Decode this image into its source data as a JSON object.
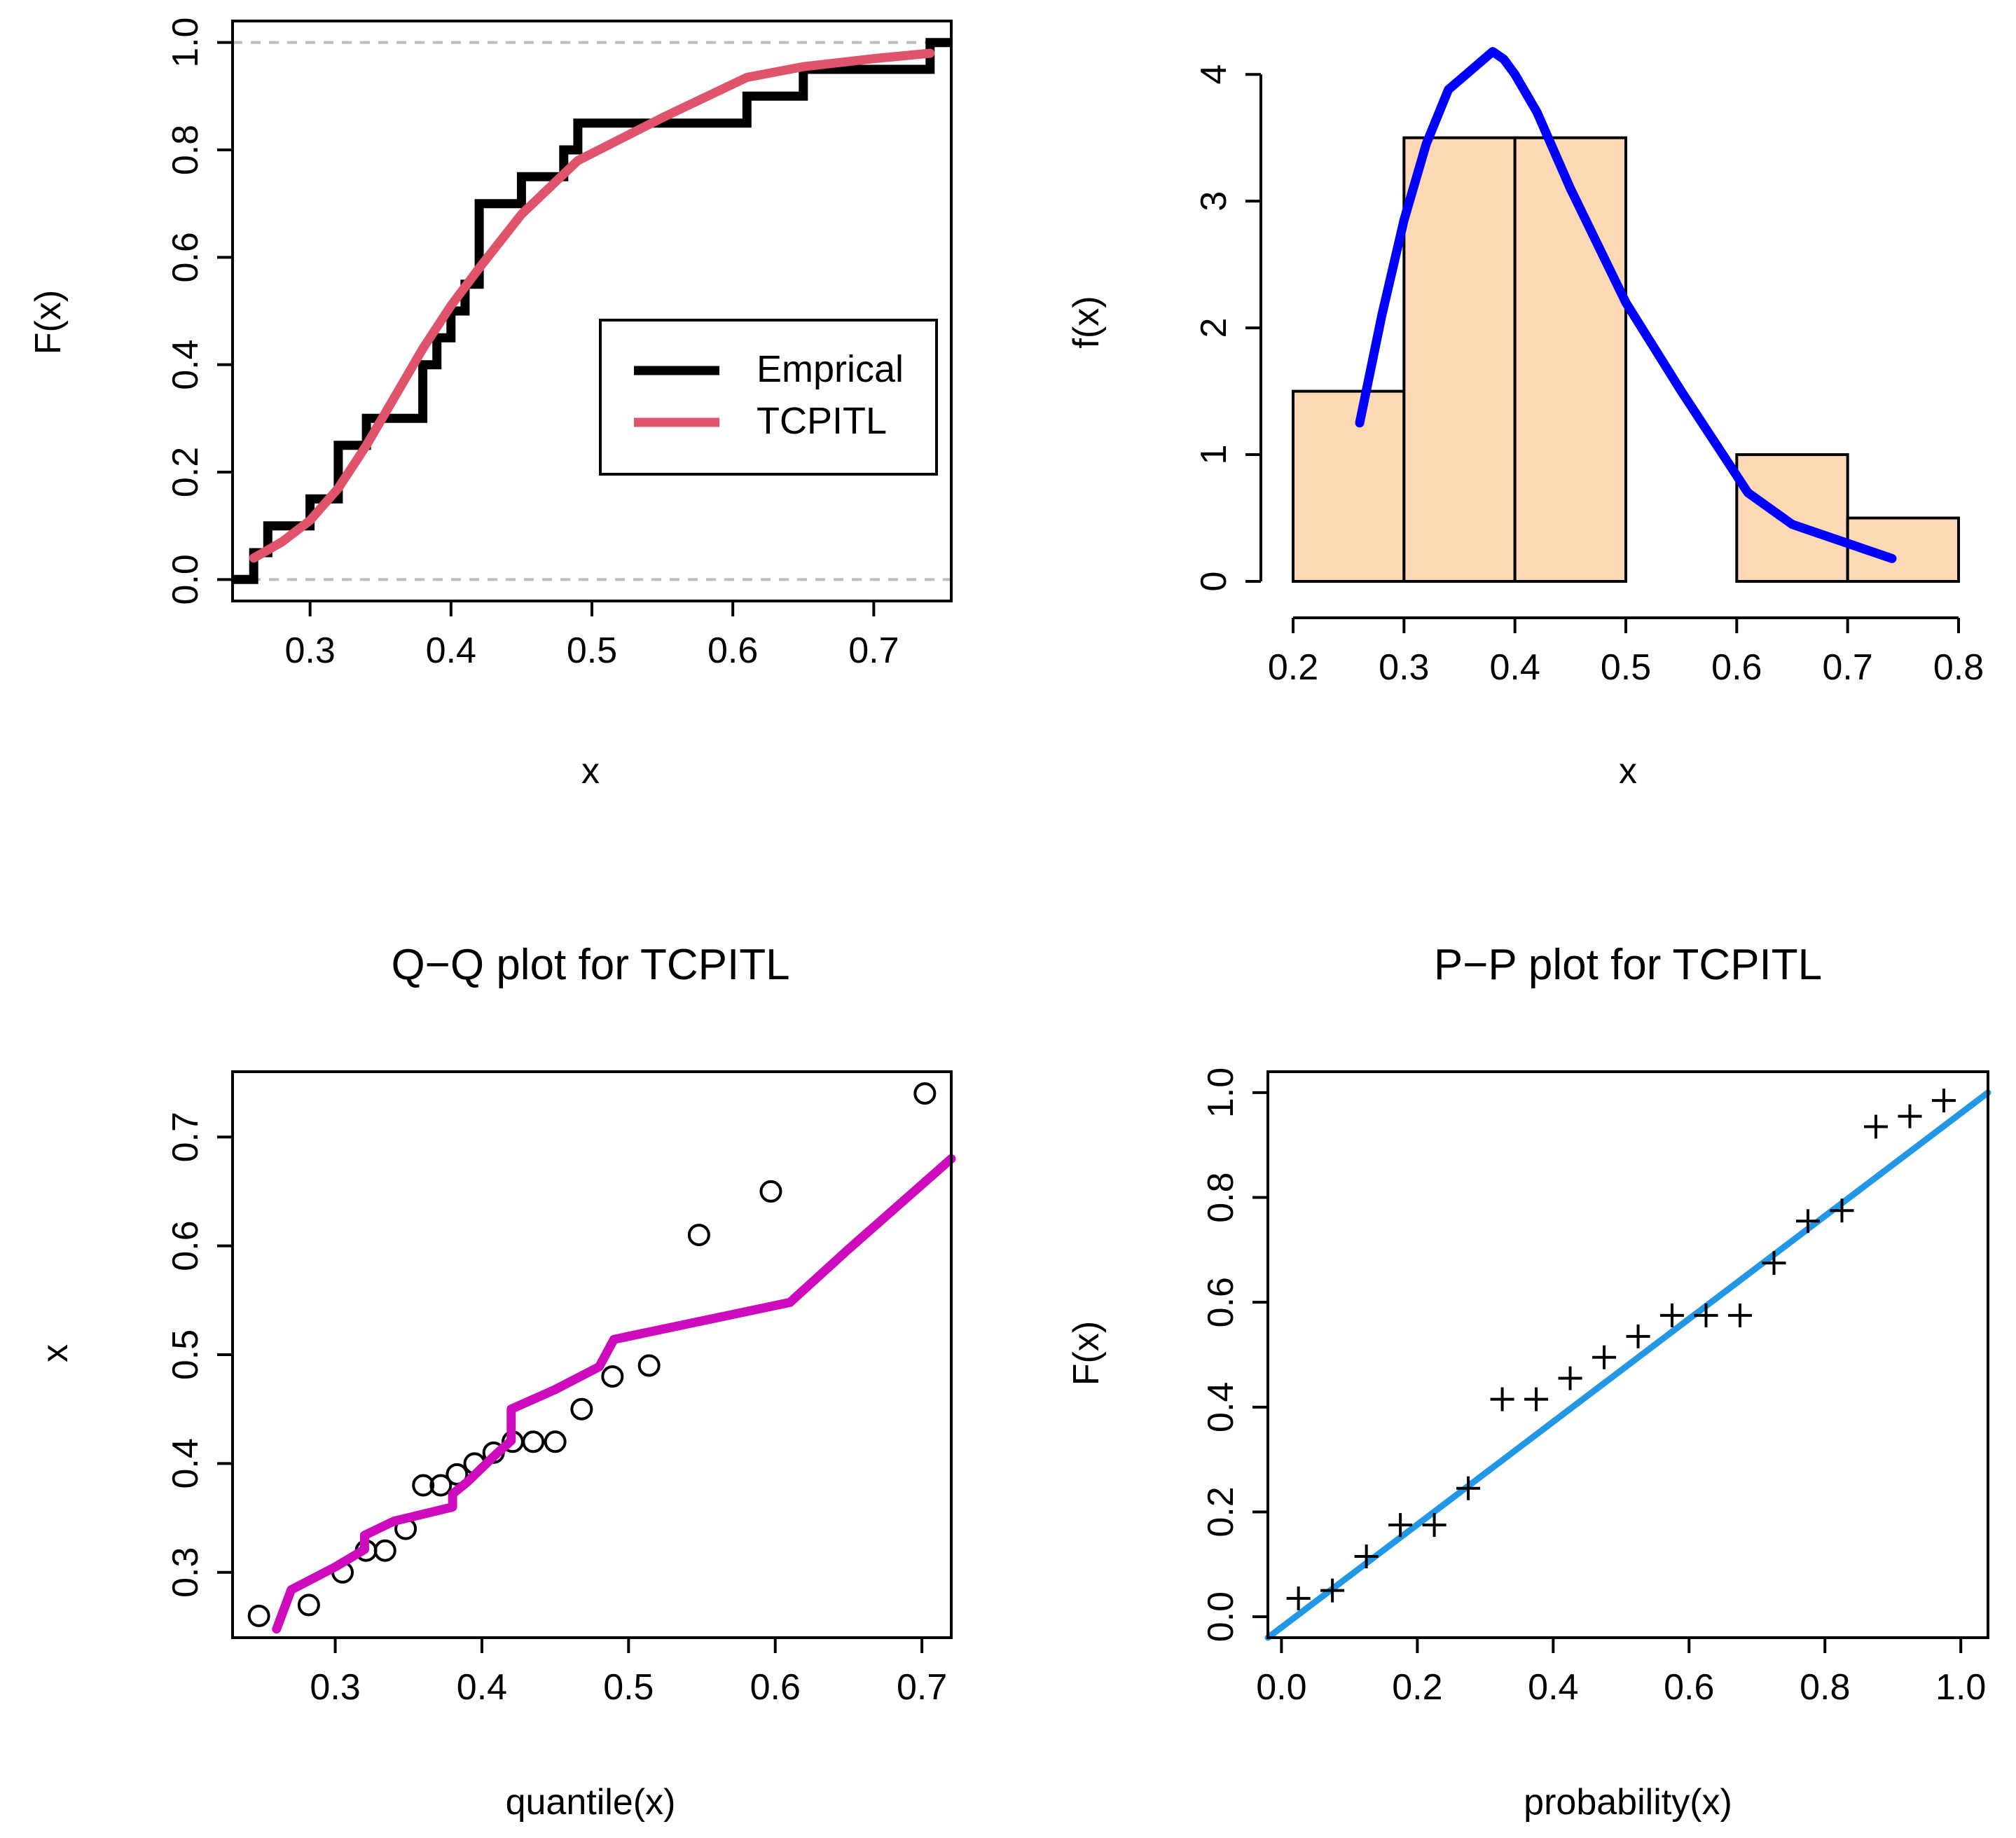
{
  "figure": {
    "colors": {
      "empirical": "#000000",
      "tcpitl": "#DF536B",
      "density": "#0000FF",
      "qq": "#CD0BBC",
      "pp": "#2297E6",
      "bars": "#FCD9B4",
      "refline": "#BEBEBE"
    }
  },
  "chart_data": [
    {
      "id": "cdf",
      "type": "line",
      "title": "",
      "xlabel": "x",
      "ylabel": "F(x)",
      "xlim": [
        0.245,
        0.755
      ],
      "ylim": [
        -0.04,
        1.04
      ],
      "xticks": [
        0.3,
        0.4,
        0.5,
        0.6,
        0.7
      ],
      "xtick_labels": [
        "0.3",
        "0.4",
        "0.5",
        "0.6",
        "0.7"
      ],
      "yticks": [
        0.0,
        0.2,
        0.4,
        0.6,
        0.8,
        1.0
      ],
      "ytick_labels": [
        "0.0",
        "0.2",
        "0.4",
        "0.6",
        "0.8",
        "1.0"
      ],
      "legend": {
        "position": "center-right",
        "entries": [
          "Emprical",
          "TCPITL"
        ]
      },
      "series": [
        {
          "name": "Emprical",
          "kind": "step",
          "x": [
            0.245,
            0.26,
            0.27,
            0.3,
            0.32,
            0.34,
            0.38,
            0.39,
            0.4,
            0.41,
            0.42,
            0.45,
            0.48,
            0.49,
            0.61,
            0.65,
            0.74,
            0.755
          ],
          "y": [
            0.0,
            0.05,
            0.1,
            0.15,
            0.25,
            0.3,
            0.4,
            0.45,
            0.5,
            0.55,
            0.7,
            0.75,
            0.8,
            0.85,
            0.9,
            0.95,
            1.0,
            1.0
          ]
        },
        {
          "name": "TCPITL",
          "kind": "line",
          "x": [
            0.26,
            0.28,
            0.3,
            0.32,
            0.34,
            0.36,
            0.38,
            0.4,
            0.42,
            0.45,
            0.49,
            0.55,
            0.61,
            0.65,
            0.7,
            0.74
          ],
          "y": [
            0.04,
            0.07,
            0.11,
            0.17,
            0.25,
            0.34,
            0.43,
            0.51,
            0.58,
            0.68,
            0.78,
            0.86,
            0.935,
            0.955,
            0.97,
            0.98
          ]
        }
      ]
    },
    {
      "id": "density",
      "type": "bar",
      "title": "",
      "xlabel": "x",
      "ylabel": "f(x)",
      "xlim": [
        0.2,
        0.8
      ],
      "ylim": [
        0,
        4.2
      ],
      "xticks": [
        0.2,
        0.3,
        0.4,
        0.5,
        0.6,
        0.7,
        0.8
      ],
      "xtick_labels": [
        "0.2",
        "0.3",
        "0.4",
        "0.5",
        "0.6",
        "0.7",
        "0.8"
      ],
      "yticks": [
        0,
        1,
        2,
        3,
        4
      ],
      "ytick_labels": [
        "0",
        "1",
        "2",
        "3",
        "4"
      ],
      "bins": [
        [
          0.2,
          0.3
        ],
        [
          0.3,
          0.4
        ],
        [
          0.4,
          0.5
        ],
        [
          0.5,
          0.6
        ],
        [
          0.6,
          0.7
        ],
        [
          0.7,
          0.8
        ]
      ],
      "values": [
        1.5,
        3.5,
        3.5,
        0.0,
        1.0,
        0.5
      ],
      "curve": {
        "name": "TCPITL density",
        "x": [
          0.26,
          0.28,
          0.3,
          0.32,
          0.34,
          0.36,
          0.38,
          0.39,
          0.4,
          0.42,
          0.45,
          0.5,
          0.55,
          0.61,
          0.65,
          0.7,
          0.74
        ],
        "y": [
          1.25,
          2.1,
          2.85,
          3.45,
          3.88,
          4.03,
          4.18,
          4.12,
          4.0,
          3.7,
          3.1,
          2.2,
          1.5,
          0.7,
          0.45,
          0.3,
          0.18
        ]
      }
    },
    {
      "id": "qq",
      "type": "scatter",
      "title": "Q−Q plot for  TCPITL",
      "xlabel": "quantile(x)",
      "ylabel": "x",
      "xlim": [
        0.23,
        0.72
      ],
      "ylim": [
        0.24,
        0.76
      ],
      "xticks": [
        0.3,
        0.4,
        0.5,
        0.6,
        0.7
      ],
      "xtick_labels": [
        "0.3",
        "0.4",
        "0.5",
        "0.6",
        "0.7"
      ],
      "yticks": [
        0.3,
        0.4,
        0.5,
        0.6,
        0.7
      ],
      "ytick_labels": [
        "0.3",
        "0.4",
        "0.5",
        "0.6",
        "0.7"
      ],
      "points": {
        "x": [
          0.248,
          0.282,
          0.305,
          0.321,
          0.334,
          0.348,
          0.36,
          0.372,
          0.383,
          0.395,
          0.408,
          0.421,
          0.435,
          0.45,
          0.468,
          0.489,
          0.514,
          0.548,
          0.597,
          0.702
        ],
        "y": [
          0.26,
          0.27,
          0.3,
          0.32,
          0.32,
          0.34,
          0.38,
          0.38,
          0.39,
          0.4,
          0.41,
          0.42,
          0.42,
          0.42,
          0.45,
          0.48,
          0.49,
          0.61,
          0.65,
          0.74
        ]
      },
      "line": {
        "name": "TCPITL",
        "x": [
          0.26,
          0.27,
          0.3,
          0.32,
          0.32,
          0.34,
          0.38,
          0.38,
          0.39,
          0.4,
          0.41,
          0.42,
          0.42,
          0.45,
          0.48,
          0.49,
          0.61,
          0.65,
          0.72
        ],
        "y": [
          0.248,
          0.284,
          0.305,
          0.321,
          0.334,
          0.347,
          0.36,
          0.372,
          0.383,
          0.396,
          0.409,
          0.421,
          0.45,
          0.468,
          0.489,
          0.514,
          0.548,
          0.597,
          0.68
        ]
      }
    },
    {
      "id": "pp",
      "type": "scatter",
      "title": "P−P plot for  TCPITL",
      "xlabel": "probability(x)",
      "ylabel": "F(x)",
      "xlim": [
        -0.02,
        1.04
      ],
      "ylim": [
        -0.04,
        1.04
      ],
      "xticks": [
        0.0,
        0.2,
        0.4,
        0.6,
        0.8,
        1.0
      ],
      "xtick_labels": [
        "0.0",
        "0.2",
        "0.4",
        "0.6",
        "0.8",
        "1.0"
      ],
      "yticks": [
        0.0,
        0.2,
        0.4,
        0.6,
        0.8,
        1.0
      ],
      "ytick_labels": [
        "0.0",
        "0.2",
        "0.4",
        "0.6",
        "0.8",
        "1.0"
      ],
      "points": {
        "x": [
          0.025,
          0.075,
          0.125,
          0.175,
          0.225,
          0.275,
          0.325,
          0.375,
          0.425,
          0.475,
          0.525,
          0.575,
          0.625,
          0.675,
          0.725,
          0.775,
          0.825,
          0.875,
          0.925,
          0.975
        ],
        "y": [
          0.035,
          0.05,
          0.115,
          0.175,
          0.175,
          0.245,
          0.415,
          0.415,
          0.455,
          0.495,
          0.535,
          0.575,
          0.575,
          0.575,
          0.675,
          0.755,
          0.775,
          0.935,
          0.955,
          0.985
        ]
      },
      "line": {
        "name": "y = x",
        "x": [
          -0.02,
          1.04
        ],
        "y": [
          -0.04,
          1.0
        ]
      }
    }
  ]
}
